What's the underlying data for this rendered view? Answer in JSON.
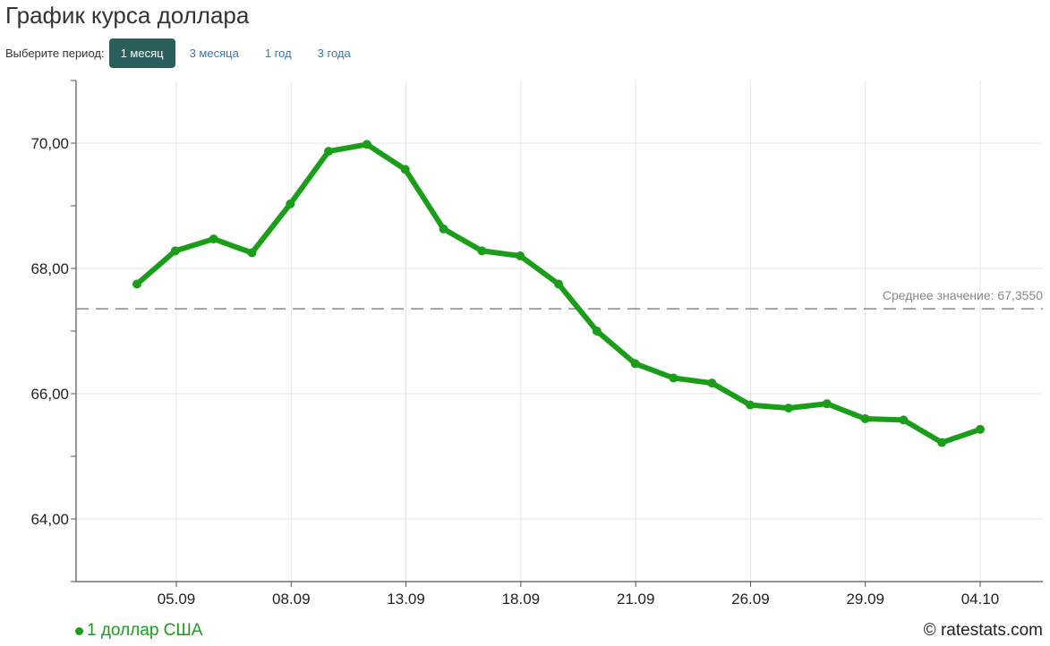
{
  "header": {
    "title": "График курса доллара"
  },
  "period": {
    "label": "Выберите период:",
    "options": [
      "1 месяц",
      "3 месяца",
      "1 год",
      "3 года"
    ],
    "selected": "1 месяц"
  },
  "colors": {
    "line": "#1a9e1a",
    "active_button": "#2b5f5b",
    "link": "#337ab7",
    "grid": "#e6e6e6",
    "average": "#888888"
  },
  "chart_data": {
    "type": "line",
    "title": "",
    "xlabel": "",
    "ylabel": "",
    "ylim": [
      63,
      71
    ],
    "yticks": [
      "64,00",
      "66,00",
      "68,00",
      "70,00"
    ],
    "ytick_values": [
      64,
      66,
      68,
      70
    ],
    "x_tick_labels": [
      "05.09",
      "08.09",
      "13.09",
      "18.09",
      "21.09",
      "26.09",
      "29.09",
      "04.10"
    ],
    "grid": true,
    "legend_position": "bottom-left",
    "series": [
      {
        "name": "1 доллар США",
        "values": [
          67.75,
          68.28,
          68.47,
          68.25,
          69.03,
          69.87,
          69.98,
          69.58,
          68.63,
          68.28,
          68.2,
          67.75,
          67.0,
          66.48,
          66.25,
          66.17,
          65.82,
          65.77,
          65.84,
          65.6,
          65.58,
          65.22,
          65.43
        ]
      }
    ],
    "average": {
      "label": "Среднее значение: 67,3550",
      "value": 67.355
    }
  },
  "footer": {
    "copyright": "© ratestats.com"
  }
}
